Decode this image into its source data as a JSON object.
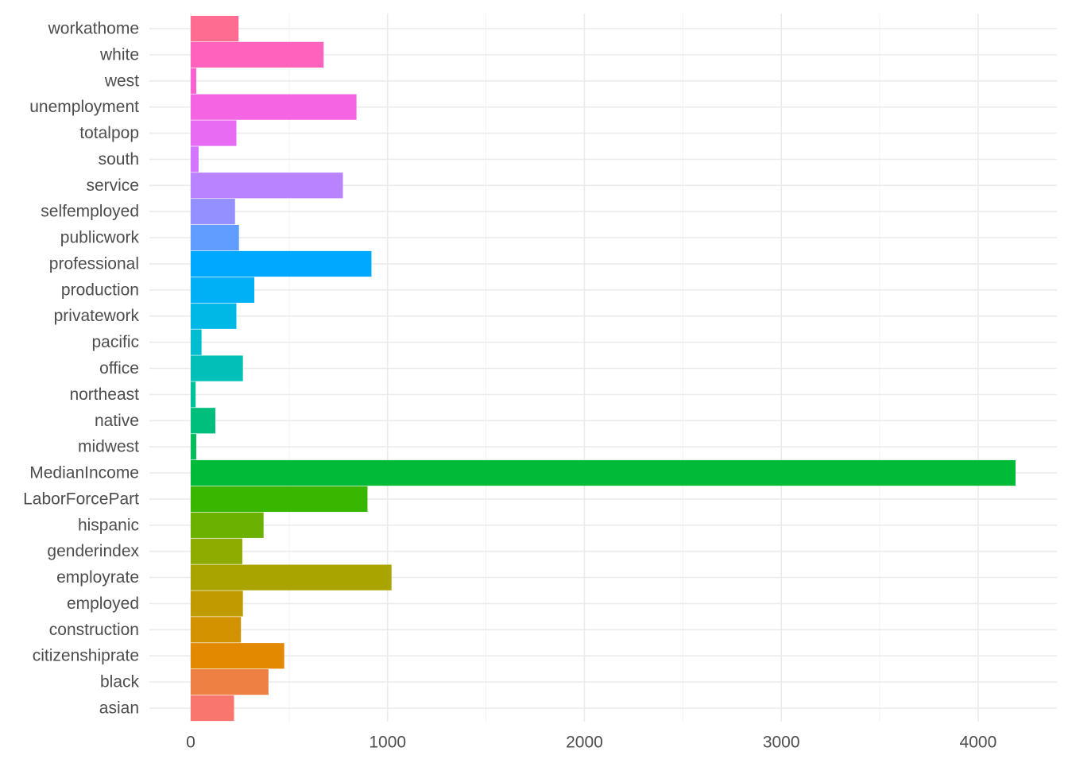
{
  "chart_data": {
    "type": "bar",
    "orientation": "horizontal",
    "title": "",
    "xlabel": "",
    "ylabel": "",
    "categories": [
      "asian",
      "black",
      "citizenshiprate",
      "construction",
      "employed",
      "employrate",
      "genderindex",
      "hispanic",
      "LaborForcePart",
      "MedianIncome",
      "midwest",
      "native",
      "northeast",
      "office",
      "pacific",
      "privatework",
      "production",
      "professional",
      "publicwork",
      "selfemployed",
      "service",
      "south",
      "totalpop",
      "unemployment",
      "west",
      "white",
      "workathome"
    ],
    "values": [
      220,
      395,
      475,
      255,
      265,
      1020,
      262,
      370,
      898,
      4190,
      28,
      125,
      25,
      265,
      55,
      232,
      323,
      918,
      245,
      225,
      773,
      40,
      232,
      842,
      28,
      675,
      243
    ],
    "colors": [
      "#F8766D",
      "#EE8043",
      "#E38900",
      "#D39200",
      "#C09B00",
      "#A9A400",
      "#8EAB00",
      "#6BB100",
      "#39B600",
      "#00BA38",
      "#00BD5C",
      "#00BF7D",
      "#00C19C",
      "#00C0B7",
      "#00BDD0",
      "#00B8E5",
      "#00B0F6",
      "#00A9FF",
      "#619CFF",
      "#9590FF",
      "#B983FF",
      "#D575FE",
      "#E76BF3",
      "#F564E3",
      "#FD61D1",
      "#FF62BC",
      "#FF6C91"
    ],
    "xlim": [
      -210,
      4400
    ],
    "xticks": [
      0,
      1000,
      2000,
      3000,
      4000
    ],
    "xtick_labels": [
      "0",
      "1000",
      "2000",
      "3000",
      "4000"
    ],
    "grid": true,
    "legend": "none"
  }
}
